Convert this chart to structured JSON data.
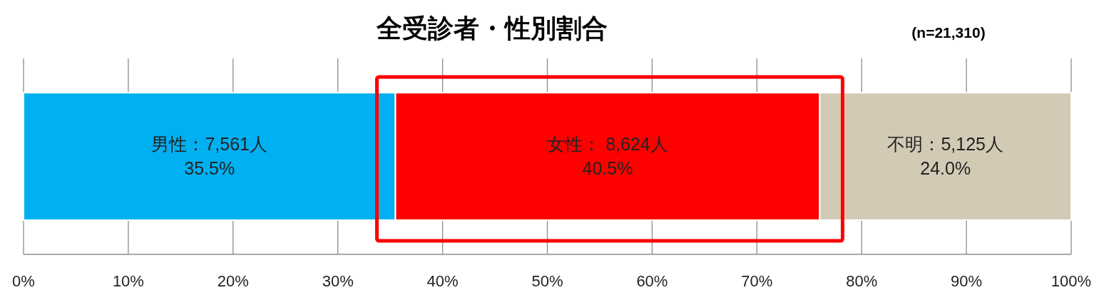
{
  "chart_data": {
    "type": "bar",
    "orientation": "horizontal",
    "stacked": true,
    "title": "全受診者・性別割合",
    "subtitle": "(n=21,310)",
    "categories": [
      null
    ],
    "series": [
      {
        "color": "#00b0f0",
        "values": [
          35.5
        ],
        "value_labels": [
          "男性：7,561人\n35.5%"
        ]
      },
      {
        "color": "#ff0000",
        "values": [
          40.5
        ],
        "value_labels": [
          "女性： 8,624人\n40.5%"
        ]
      },
      {
        "color": "#d3cab5",
        "values": [
          24.0
        ],
        "value_labels": [
          "不明：5,125人\n24.0%"
        ]
      }
    ],
    "xlim": [
      0,
      100
    ],
    "xticks": [
      {
        "value": 0,
        "label": "0%"
      },
      {
        "value": 10,
        "label": "10%"
      },
      {
        "value": 20,
        "label": "20%"
      },
      {
        "value": 30,
        "label": "30%"
      },
      {
        "value": 40,
        "label": "40%"
      },
      {
        "value": 50,
        "label": "50%"
      },
      {
        "value": 60,
        "label": "60%"
      },
      {
        "value": 70,
        "label": "70%"
      },
      {
        "value": 80,
        "label": "80%"
      },
      {
        "value": 90,
        "label": "90%"
      },
      {
        "value": 100,
        "label": "100%"
      }
    ],
    "grid": "x"
  }
}
